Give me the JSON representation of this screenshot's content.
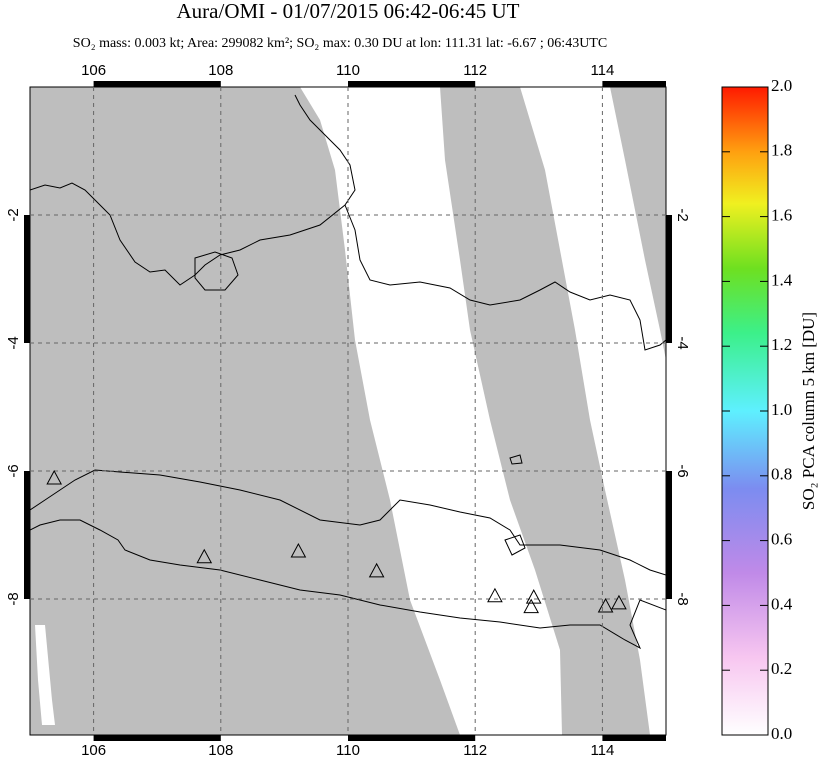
{
  "chart_data": {
    "type": "map",
    "title": "Aura/OMI - 01/07/2015 06:42-06:45 UT",
    "subtitle": "SO₂ mass: 0.003 kt; Area: 299082 km²; SO₂ max: 0.30 DU at lon: 111.31 lat: -6.67 ; 06:43UTC",
    "xlim": [
      105,
      115
    ],
    "ylim": [
      -10.125,
      0
    ],
    "xticks": [
      106,
      108,
      110,
      112,
      114
    ],
    "yticks": [
      -8,
      -6,
      -4,
      -2
    ],
    "grid": true,
    "volcanoes": {
      "lon": [
        105.38,
        107.74,
        109.22,
        110.45,
        112.31,
        112.92,
        112.88,
        114.05,
        114.26
      ],
      "lat": [
        -6.11,
        -7.34,
        -7.25,
        -7.56,
        -7.95,
        -7.97,
        -8.12,
        -8.11,
        -8.06
      ]
    },
    "colorbar": {
      "label": "SO₂ PCA column 5 km [DU]",
      "lim": [
        0,
        2
      ],
      "ticks": [
        {
          "value": 0,
          "label": "0.0"
        },
        {
          "value": 0.2,
          "label": "0.2"
        },
        {
          "value": 0.4,
          "label": "0.4"
        },
        {
          "value": 0.6,
          "label": "0.6"
        },
        {
          "value": 0.8,
          "label": "0.8"
        },
        {
          "value": 1,
          "label": "1.0"
        },
        {
          "value": 1.2,
          "label": "1.2"
        },
        {
          "value": 1.4,
          "label": "1.4"
        },
        {
          "value": 1.6,
          "label": "1.6"
        },
        {
          "value": 1.8,
          "label": "1.8"
        },
        {
          "value": 2,
          "label": "2.0"
        }
      ]
    }
  }
}
